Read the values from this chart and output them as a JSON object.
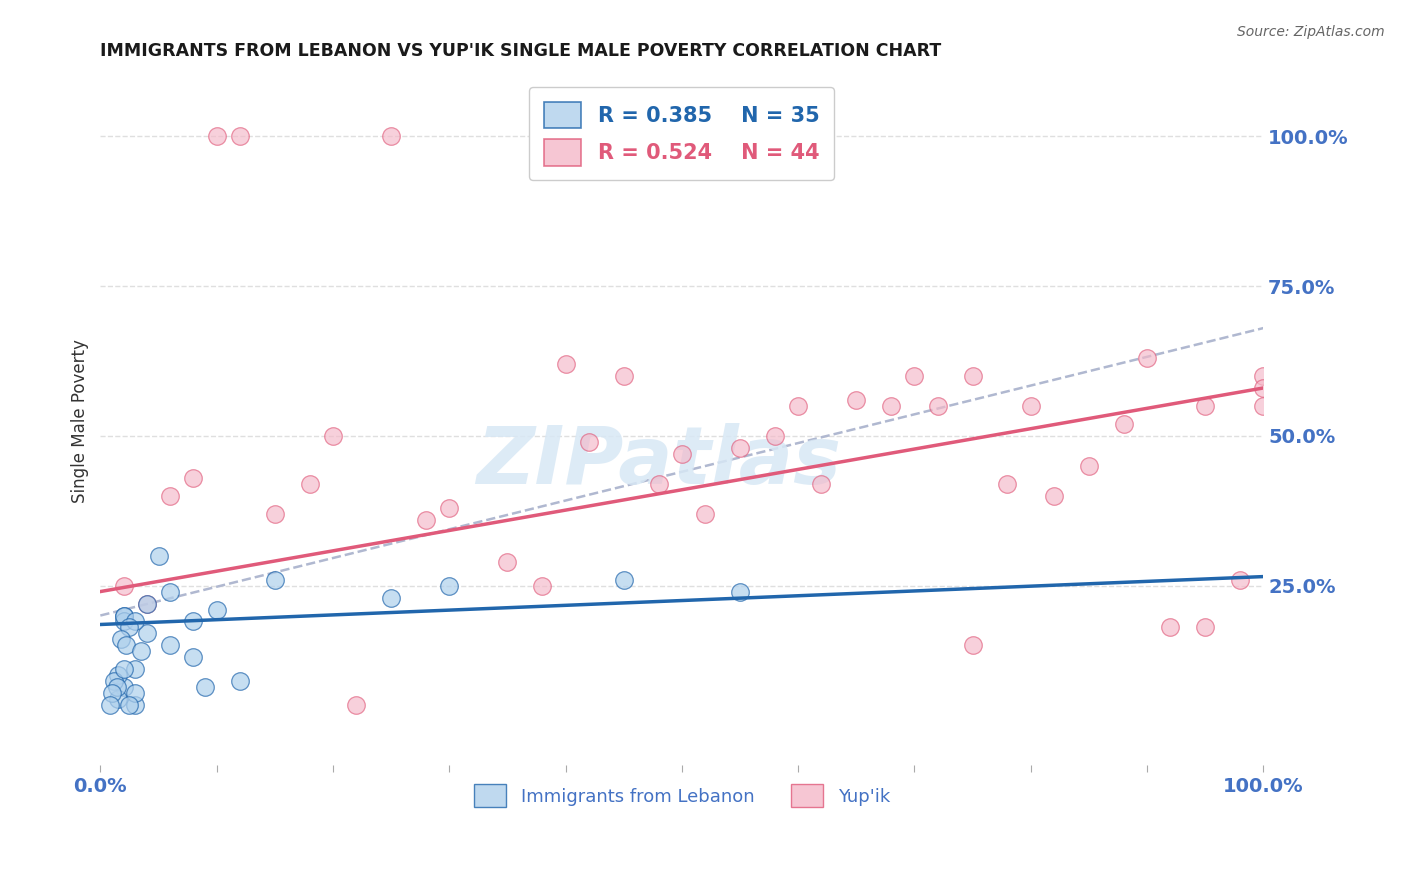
{
  "title": "IMMIGRANTS FROM LEBANON VS YUP'IK SINGLE MALE POVERTY CORRELATION CHART",
  "source": "Source: ZipAtlas.com",
  "ylabel": "Single Male Poverty",
  "legend_blue_r": "R = 0.385",
  "legend_blue_n": "N = 35",
  "legend_pink_r": "R = 0.524",
  "legend_pink_n": "N = 44",
  "blue_scatter_x": [
    0.5,
    1.5,
    2.5,
    3.0,
    4.5,
    5.5,
    0.3,
    1.0,
    0.8,
    0.2,
    0.2,
    0.4,
    0.6,
    0.8,
    0.3,
    0.2,
    0.3,
    0.15,
    0.25,
    0.15,
    0.12,
    0.14,
    0.1,
    0.08,
    0.2,
    0.4,
    0.6,
    0.2,
    0.3,
    0.25,
    0.18,
    0.22,
    0.35,
    1.2,
    0.9
  ],
  "blue_scatter_y": [
    30,
    26,
    23,
    25,
    26,
    24,
    5,
    21,
    19,
    20,
    19,
    17,
    15,
    13,
    11,
    8,
    7,
    6,
    5,
    10,
    9,
    8,
    7,
    5,
    11,
    22,
    24,
    20,
    19,
    18,
    16,
    15,
    14,
    9,
    8
  ],
  "pink_scatter_x": [
    0.2,
    0.4,
    0.6,
    0.8,
    1.0,
    1.5,
    2.0,
    3.5,
    5.0,
    6.0,
    7.0,
    8.0,
    9.0,
    9.5,
    10.0,
    10.0,
    10.0,
    2.5,
    4.0,
    6.5,
    7.5,
    8.5,
    9.8,
    1.8,
    3.0,
    5.5,
    7.2,
    8.8,
    4.5,
    6.8,
    9.2,
    1.2,
    2.8,
    4.2,
    5.8,
    7.8,
    9.5,
    3.8,
    6.2,
    8.2,
    2.2,
    4.8,
    7.5,
    5.2
  ],
  "pink_scatter_y": [
    25,
    22,
    40,
    43,
    100,
    37,
    50,
    29,
    47,
    55,
    60,
    55,
    63,
    55,
    55,
    60,
    58,
    100,
    62,
    56,
    60,
    45,
    26,
    42,
    38,
    48,
    55,
    52,
    60,
    55,
    18,
    100,
    36,
    49,
    50,
    42,
    18,
    25,
    42,
    40,
    5,
    42,
    15,
    37
  ],
  "blue_line_x": [
    0,
    10
  ],
  "blue_line_y": [
    18.5,
    26.5
  ],
  "pink_line_x": [
    0,
    10
  ],
  "pink_line_y": [
    24,
    58
  ],
  "dashed_line_x": [
    0,
    10
  ],
  "dashed_line_y": [
    20,
    68
  ],
  "xlim": [
    0,
    10
  ],
  "ylim": [
    -5,
    110
  ],
  "bg_color": "#ffffff",
  "blue_color": "#afd0ec",
  "pink_color": "#f4b8c8",
  "blue_line_color": "#2166ac",
  "pink_line_color": "#e05a7a",
  "dashed_line_color": "#b0b8d0",
  "grid_color": "#d8d8d8",
  "title_color": "#1a1a1a",
  "axis_label_color": "#4472c4",
  "watermark_color": "#d8e8f5",
  "watermark": "ZIPatlas"
}
